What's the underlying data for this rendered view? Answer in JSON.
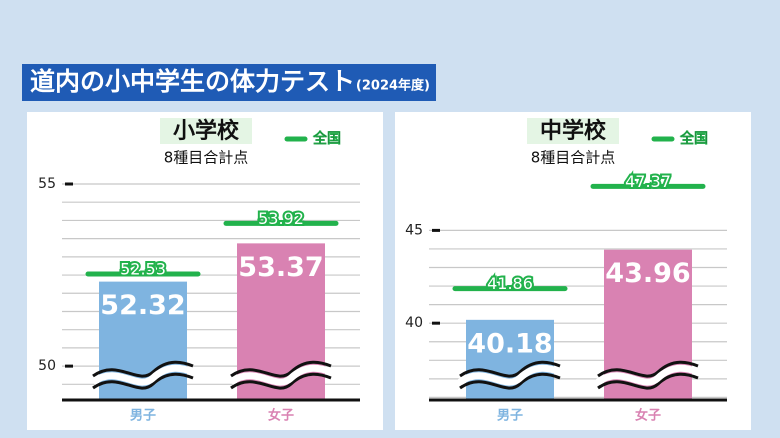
{
  "header": {
    "title": "道内の小中学生の体力テスト",
    "subtitle": "(2024年度)"
  },
  "chart_data": [
    {
      "type": "bar",
      "title": "小学校",
      "subtitle": "8種目合計点",
      "categories": [
        "男子",
        "女子"
      ],
      "values": [
        52.32,
        53.37
      ],
      "colors": [
        "#7fb4e0",
        "#d982b2"
      ],
      "reference": {
        "name": "全国",
        "color": "#22b24c",
        "values": [
          52.53,
          53.92
        ]
      },
      "ylim": [
        49.07,
        55
      ],
      "yticks": [
        50,
        55
      ],
      "grid": true,
      "grid_step": 0.5
    },
    {
      "type": "bar",
      "title": "中学校",
      "subtitle": "8種目合計点",
      "categories": [
        "男子",
        "女子"
      ],
      "values": [
        40.18,
        43.96
      ],
      "colors": [
        "#7fb4e0",
        "#d982b2"
      ],
      "reference": {
        "name": "全国",
        "color": "#22b24c",
        "values": [
          41.86,
          47.37
        ]
      },
      "ylim": [
        35.86,
        47.5
      ],
      "yticks": [
        40,
        45
      ],
      "grid": true,
      "grid_step": 1
    }
  ]
}
